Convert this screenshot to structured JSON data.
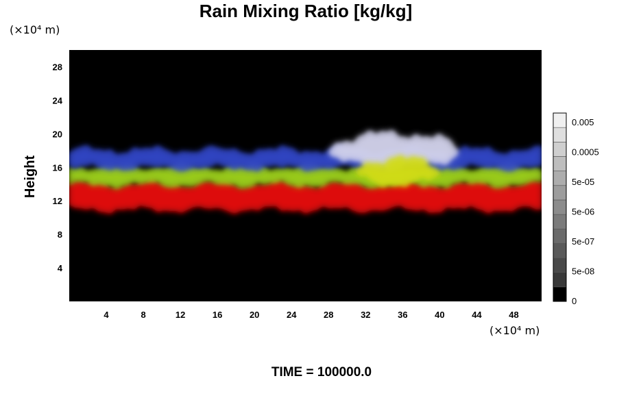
{
  "chart_data": {
    "type": "heatmap",
    "title": "Rain Mixing Ratio [kg/kg]",
    "ylabel": "Height",
    "x_unit": "(×10⁴ m)",
    "y_unit": "(×10⁴ m)",
    "xlim": [
      0,
      51
    ],
    "ylim": [
      0,
      30
    ],
    "x_ticks": [
      "4",
      "8",
      "12",
      "16",
      "20",
      "24",
      "28",
      "32",
      "36",
      "40",
      "44",
      "48"
    ],
    "y_ticks": [
      "4",
      "8",
      "12",
      "16",
      "20",
      "24",
      "28"
    ],
    "colorbar_labels": [
      "0.005",
      "0.0005",
      "5e-05",
      "5e-06",
      "5e-07",
      "5e-08",
      "0"
    ],
    "colorbar_levels": 13,
    "background_color": "#000000",
    "layers": [
      {
        "color": "#e60f0f",
        "x_range": [
          0,
          51
        ],
        "z_range": [
          11,
          14
        ]
      },
      {
        "color": "#9ed21e",
        "x_range": [
          0,
          51
        ],
        "z_range": [
          14,
          16
        ]
      },
      {
        "color": "#3246c8",
        "x_range": [
          0,
          51
        ],
        "z_range": [
          16,
          18
        ]
      },
      {
        "color": "#d2d2eb",
        "x_range": [
          28,
          42
        ],
        "z_range": [
          16,
          20
        ]
      },
      {
        "color": "#d2dc14",
        "x_range": [
          31,
          40
        ],
        "z_range": [
          14,
          17
        ]
      }
    ],
    "grid": false
  },
  "footer": {
    "time_label": "TIME = 100000.0"
  }
}
